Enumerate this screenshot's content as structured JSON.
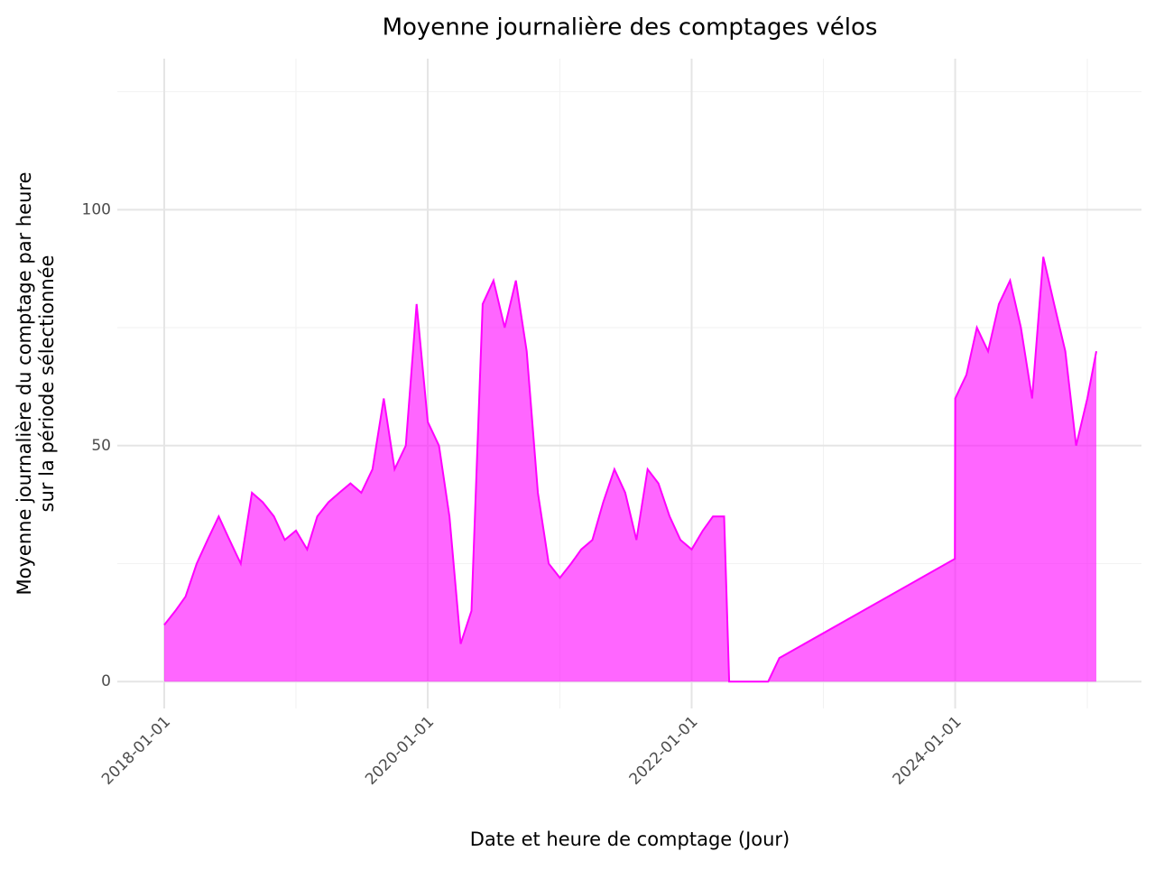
{
  "chart_data": {
    "type": "area",
    "title": "Moyenne journalière des comptages vélos",
    "x_label": "Date et heure de comptage (Jour)",
    "y_label": [
      "Moyenne journalière du comptage par heure",
      "sur la période sélectionnée"
    ],
    "color": "#ff00ff",
    "grid": true,
    "xlim": [
      "2017-08-24",
      "2025-05-31"
    ],
    "ylim": [
      -5.7,
      132
    ],
    "xticks": [
      "2018-01-01",
      "2020-01-01",
      "2022-01-01",
      "2024-01-01"
    ],
    "x_minor_ticks": [
      "2019-01-01",
      "2021-01-01",
      "2023-01-01",
      "2025-01-01"
    ],
    "yticks": [
      0,
      50,
      100
    ],
    "y_minor_ticks": [
      25,
      75,
      125
    ],
    "x": [
      "2018-01-01",
      "2018-02-01",
      "2018-03-01",
      "2018-04-01",
      "2018-05-01",
      "2018-06-01",
      "2018-07-01",
      "2018-08-01",
      "2018-09-01",
      "2018-10-01",
      "2018-11-01",
      "2018-12-01",
      "2019-01-01",
      "2019-02-01",
      "2019-03-01",
      "2019-04-01",
      "2019-05-01",
      "2019-06-01",
      "2019-07-01",
      "2019-08-01",
      "2019-09-01",
      "2019-10-01",
      "2019-11-01",
      "2019-12-01",
      "2020-01-01",
      "2020-02-01",
      "2020-03-01",
      "2020-04-01",
      "2020-05-01",
      "2020-06-01",
      "2020-07-01",
      "2020-08-01",
      "2020-09-01",
      "2020-10-01",
      "2020-11-01",
      "2020-12-01",
      "2021-01-01",
      "2021-02-01",
      "2021-03-01",
      "2021-04-01",
      "2021-05-01",
      "2021-06-01",
      "2021-07-01",
      "2021-08-01",
      "2021-09-01",
      "2021-10-01",
      "2021-11-01",
      "2021-12-01",
      "2022-01-01",
      "2022-02-01",
      "2022-03-01",
      "2022-04-01",
      "2022-04-15",
      "2022-08-01",
      "2022-09-01",
      "2023-12-31",
      "2024-01-01",
      "2024-02-01",
      "2024-03-01",
      "2024-04-01",
      "2024-05-01",
      "2024-06-01",
      "2024-07-01",
      "2024-08-01",
      "2024-09-01",
      "2024-10-01",
      "2024-11-01",
      "2024-12-01",
      "2025-01-01",
      "2025-01-26"
    ],
    "values": [
      12,
      15,
      18,
      25,
      30,
      35,
      30,
      25,
      40,
      38,
      35,
      30,
      32,
      28,
      35,
      38,
      40,
      42,
      40,
      45,
      60,
      45,
      50,
      80,
      55,
      50,
      35,
      8,
      15,
      80,
      85,
      75,
      85,
      70,
      40,
      25,
      22,
      25,
      28,
      30,
      38,
      45,
      40,
      30,
      45,
      42,
      35,
      30,
      28,
      32,
      35,
      35,
      0,
      0,
      5,
      26,
      60,
      65,
      75,
      70,
      80,
      85,
      75,
      60,
      90,
      80,
      70,
      50,
      60,
      70
    ]
  }
}
